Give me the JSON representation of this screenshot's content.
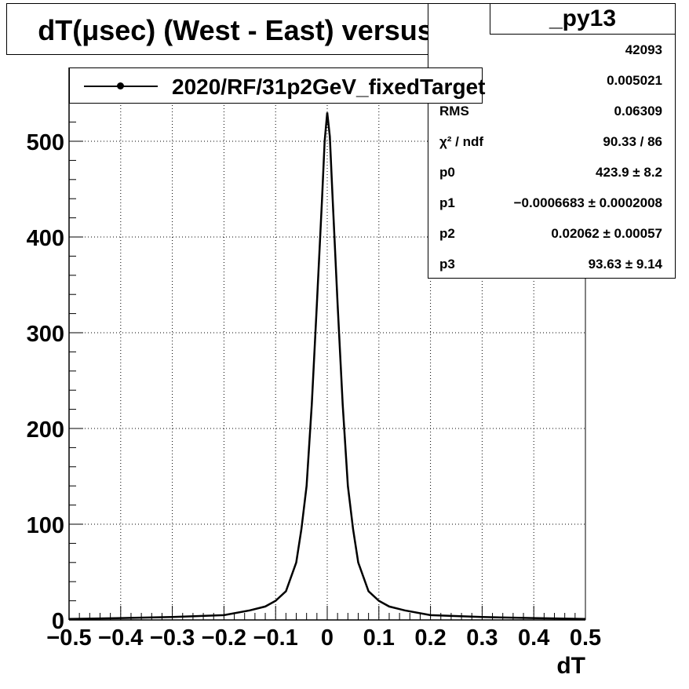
{
  "title": "dT(μsec) (West - East) versus Z",
  "legend": {
    "entry": "2020/RF/31p2GeV_fixedTarget"
  },
  "stats": {
    "name": "_py13",
    "rows": [
      {
        "label": "",
        "value": "42093"
      },
      {
        "label": "",
        "value": "0.005021"
      },
      {
        "label": "RMS",
        "value": "0.06309"
      },
      {
        "label": "χ² / ndf",
        "value": "90.33 / 86"
      },
      {
        "label": "p0",
        "value": "423.9 ± 8.2"
      },
      {
        "label": "p1",
        "value": "−0.0006683 ± 0.0002008"
      },
      {
        "label": "p2",
        "value": "0.02062 ± 0.00057"
      },
      {
        "label": "p3",
        "value": "93.63 ± 9.14"
      }
    ]
  },
  "chart_data": {
    "type": "line",
    "xlabel": "dT",
    "ylabel": "",
    "xlim": [
      -0.5,
      0.5
    ],
    "ylim": [
      0,
      550
    ],
    "grid": true,
    "x_ticks": [
      "−0.5",
      "−0.4",
      "−0.3",
      "−0.2",
      "−0.1",
      "0",
      "0.1",
      "0.2",
      "0.3",
      "0.4",
      "0.5"
    ],
    "y_ticks": [
      "0",
      "100",
      "200",
      "300",
      "400",
      "500"
    ],
    "legend_position": "top-left",
    "series": [
      {
        "name": "2020/RF/31p2GeV_fixedTarget",
        "x": [
          -0.5,
          -0.4,
          -0.3,
          -0.2,
          -0.15,
          -0.12,
          -0.1,
          -0.08,
          -0.06,
          -0.05,
          -0.04,
          -0.03,
          -0.02,
          -0.01,
          -0.005,
          0.0,
          0.005,
          0.01,
          0.02,
          0.03,
          0.04,
          0.05,
          0.06,
          0.08,
          0.1,
          0.12,
          0.15,
          0.2,
          0.3,
          0.4,
          0.5
        ],
        "y": [
          1,
          2,
          3,
          5,
          10,
          14,
          20,
          30,
          60,
          95,
          140,
          225,
          330,
          440,
          500,
          530,
          505,
          445,
          330,
          225,
          140,
          95,
          60,
          30,
          20,
          14,
          10,
          5,
          3,
          2,
          1
        ]
      }
    ]
  }
}
